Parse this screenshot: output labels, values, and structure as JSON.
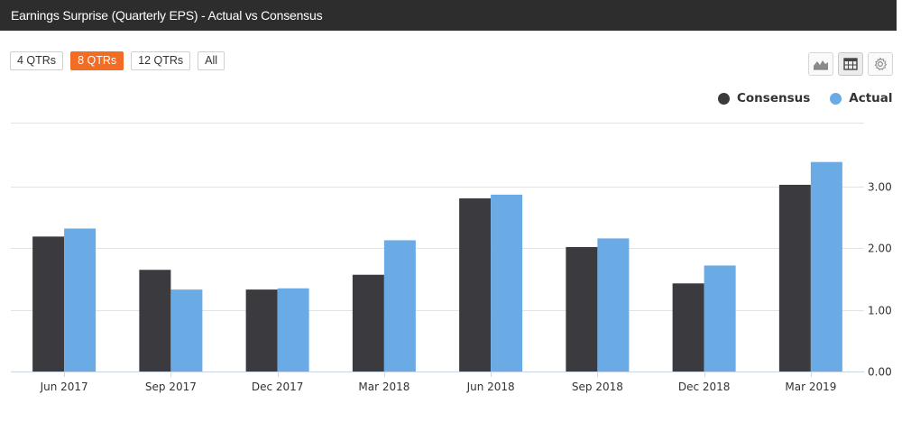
{
  "header": {
    "title": "Earnings Surprise (Quarterly EPS) - Actual vs Consensus"
  },
  "range_buttons": [
    {
      "label": "4 QTRs",
      "active": false
    },
    {
      "label": "8 QTRs",
      "active": true
    },
    {
      "label": "12 QTRs",
      "active": false
    },
    {
      "label": "All",
      "active": false
    }
  ],
  "toolbar": {
    "icons": [
      "area-chart-icon",
      "table-icon",
      "gear-icon"
    ],
    "selected": "table-icon"
  },
  "colors": {
    "consensus": "#3a3a3f",
    "actual": "#6aabe6",
    "active_button": "#f26c23",
    "title_bar": "#2d2d2d"
  },
  "chart_data": {
    "type": "bar",
    "categories": [
      "Jun 2017",
      "Sep 2017",
      "Dec 2017",
      "Mar 2018",
      "Jun 2018",
      "Sep 2018",
      "Dec 2018",
      "Mar 2019"
    ],
    "series": [
      {
        "name": "Consensus",
        "values": [
          2.19,
          1.65,
          1.33,
          1.57,
          2.81,
          2.02,
          1.43,
          3.03
        ]
      },
      {
        "name": "Actual",
        "values": [
          2.32,
          1.33,
          1.35,
          2.13,
          2.87,
          2.16,
          1.72,
          3.4
        ]
      }
    ],
    "title": "",
    "xlabel": "",
    "ylabel": "",
    "ylim": [
      0,
      4
    ],
    "y_ticks": [
      "0.00",
      "1.00",
      "2.00",
      "3.00"
    ],
    "y_tick_values": [
      0,
      1,
      2,
      3
    ],
    "grid": true,
    "legend_position": "top-right",
    "y_axis_side": "right"
  }
}
